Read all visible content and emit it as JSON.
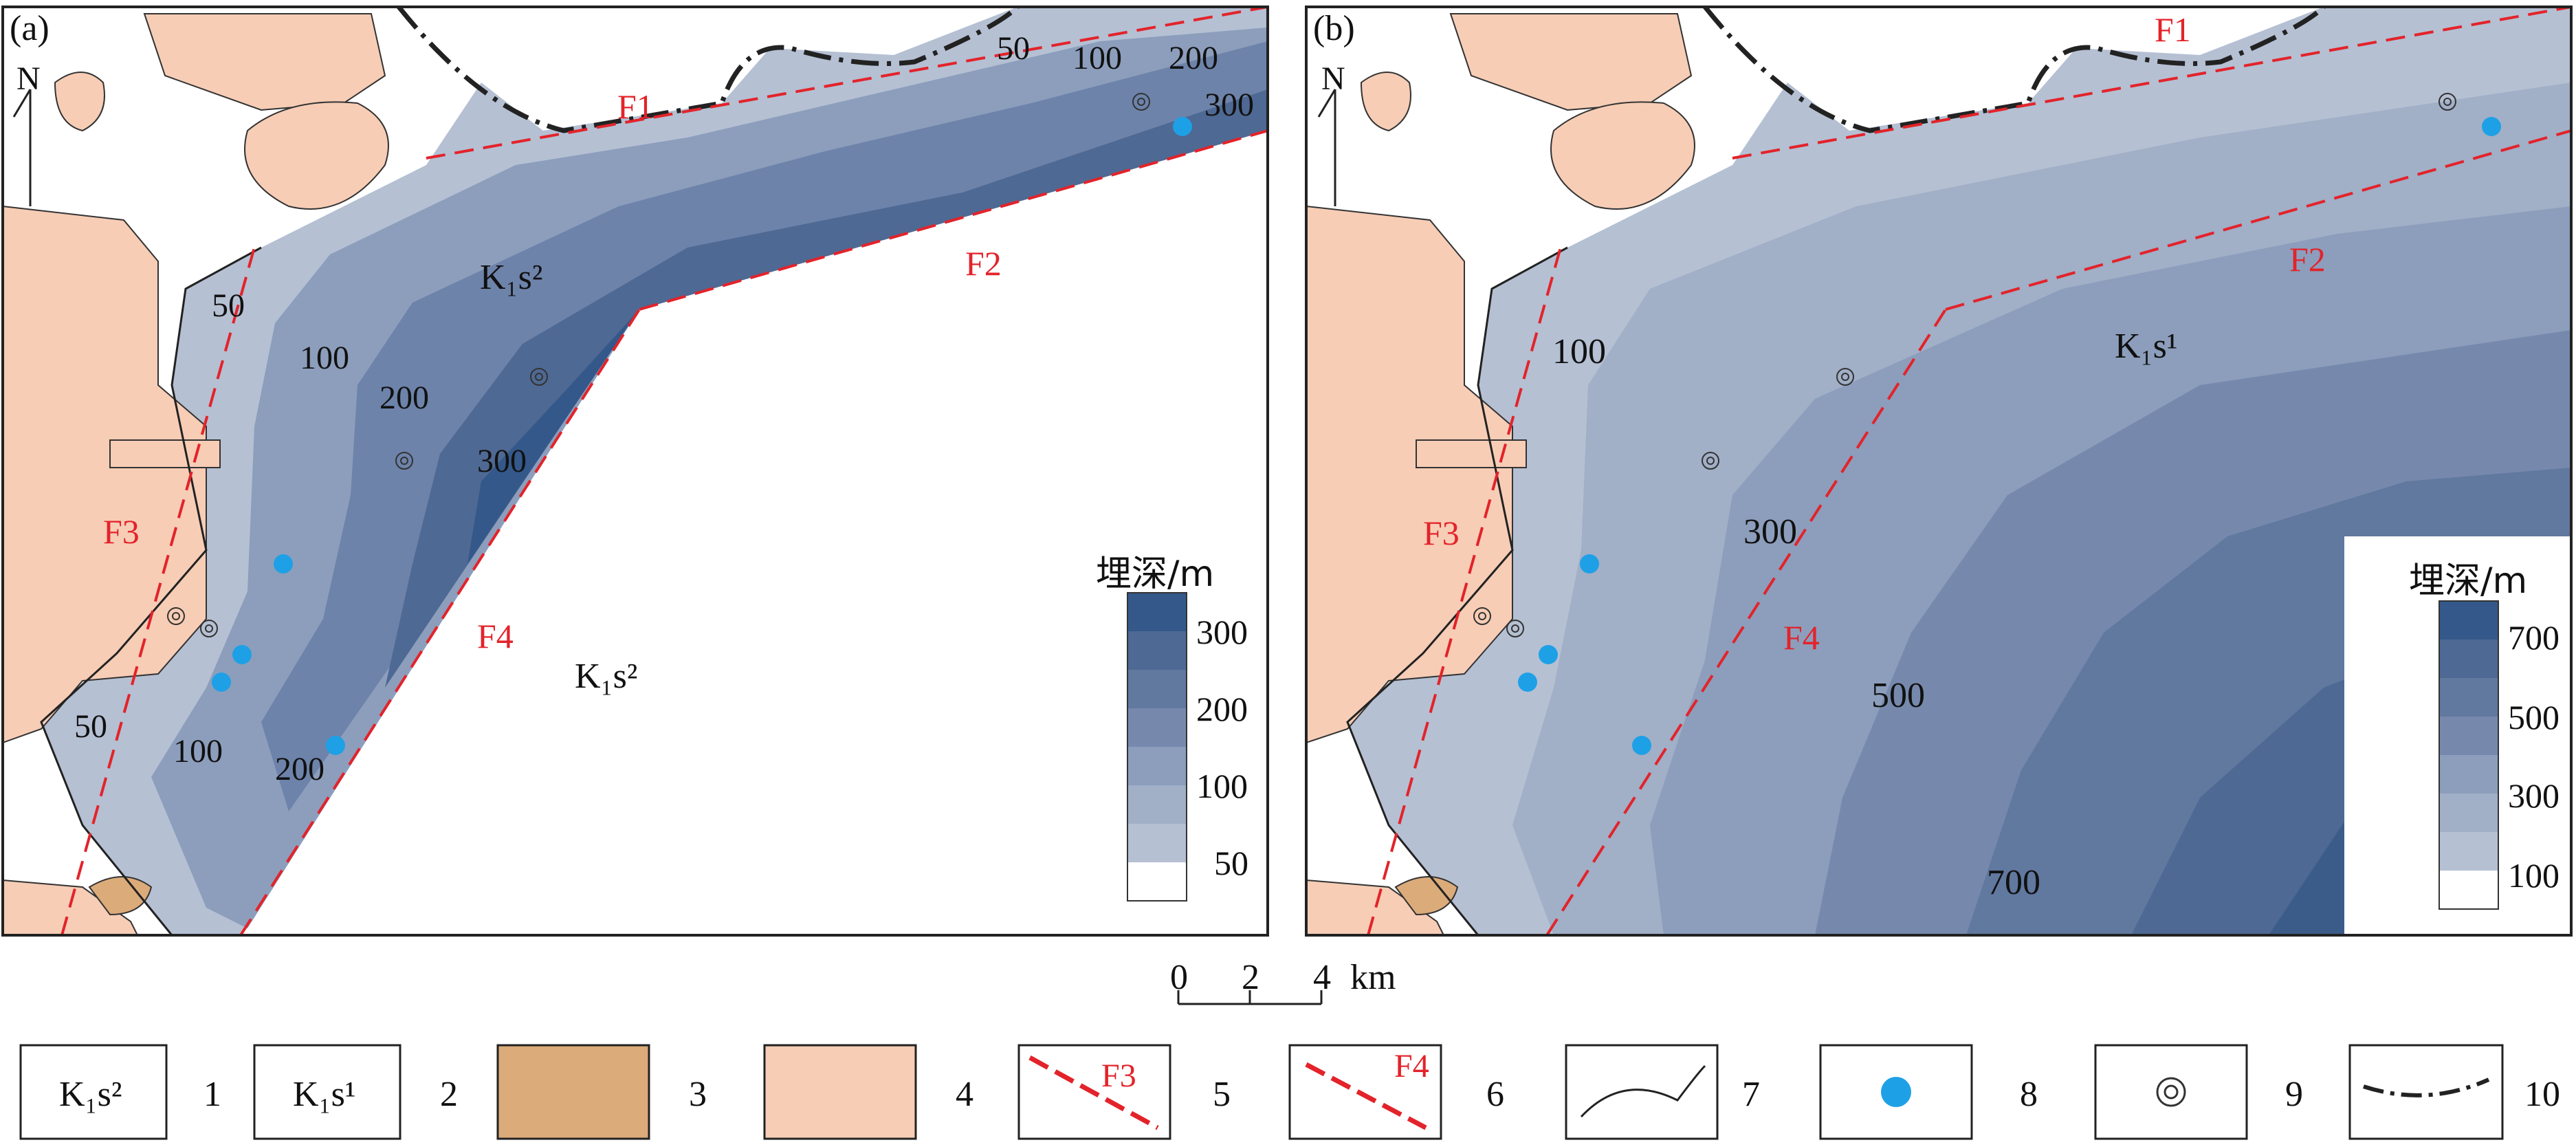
{
  "colors": {
    "c1": "#b5c0d3",
    "c2": "#a1afc7",
    "c3": "#8c9ebc",
    "c4": "#7689ad",
    "c5": "#61789f",
    "c6": "#4e6993",
    "c7": "#3b5c88",
    "c8": "#2f5382",
    "pink": "#f7cdb6",
    "brown": "#dcab7a",
    "fault": "#e3232a",
    "well": "#1ea0e6"
  },
  "map_a": {
    "panel_label": "(a)",
    "north_label": "N",
    "contour_labels": [
      "50",
      "100",
      "200",
      "300",
      "50",
      "100",
      "200",
      "300",
      "50",
      "100",
      "200"
    ],
    "unit_inside": "K₁s²",
    "unit_outside": "K₁s²",
    "faults": [
      "F1",
      "F2",
      "F3",
      "F4"
    ],
    "legend_title": "埋深/m",
    "legend_ticks": [
      "300",
      "200",
      "100",
      "50"
    ]
  },
  "map_b": {
    "panel_label": "(b)",
    "north_label": "N",
    "contour_labels": [
      "100",
      "300",
      "500",
      "700"
    ],
    "unit_inside": "K₁s¹",
    "faults": [
      "F1",
      "F2",
      "F3",
      "F4"
    ],
    "legend_title": "埋深/m",
    "legend_ticks": [
      "700",
      "500",
      "300",
      "100"
    ]
  },
  "scale_bar": {
    "ticks": [
      "0",
      "2",
      "4"
    ],
    "unit": "km"
  },
  "legend": [
    {
      "n": "1",
      "text": "K₁s²",
      "type": "unit"
    },
    {
      "n": "2",
      "text": "K₁s¹",
      "type": "unit"
    },
    {
      "n": "3",
      "text": "",
      "type": "brown-fill"
    },
    {
      "n": "4",
      "text": "",
      "type": "pink-fill"
    },
    {
      "n": "5",
      "text": "F3",
      "type": "normal-fault"
    },
    {
      "n": "6",
      "text": "F4",
      "type": "normal-fault"
    },
    {
      "n": "7",
      "text": "",
      "type": "boundary-line"
    },
    {
      "n": "8",
      "text": "",
      "type": "well-dot"
    },
    {
      "n": "9",
      "text": "",
      "type": "well-circle"
    },
    {
      "n": "10",
      "text": "",
      "type": "dash-dot-line"
    }
  ]
}
